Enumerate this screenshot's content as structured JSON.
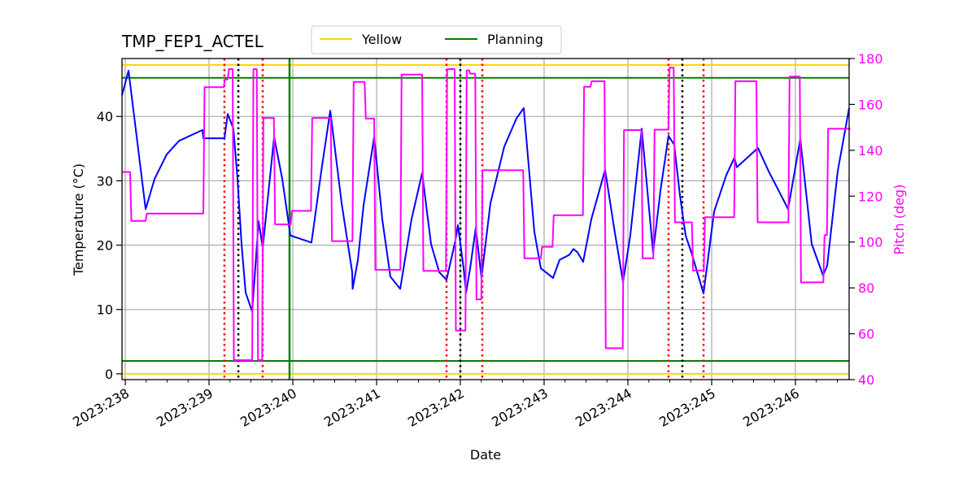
{
  "chart_data": {
    "type": "line",
    "title": "TMP_FEP1_ACTEL",
    "xlabel": "Date",
    "ylabel": "Temperature (°C)",
    "y2label": "Pitch (deg)",
    "xlim": [
      237.961,
      246.641
    ],
    "ylim": [
      -0.9,
      49.0
    ],
    "y2lim": [
      40,
      180
    ],
    "grid": true,
    "legend_placement": "top-center (above plot)",
    "x_ticks": [
      238,
      239,
      240,
      241,
      242,
      243,
      244,
      245,
      246
    ],
    "x_tick_labels": [
      "2023:238",
      "2023:239",
      "2023:240",
      "2023:241",
      "2023:242",
      "2023:243",
      "2023:244",
      "2023:245",
      "2023:246"
    ],
    "y_ticks": [
      0,
      10,
      20,
      30,
      40
    ],
    "y_tick_labels": [
      "0",
      "10",
      "20",
      "30",
      "40"
    ],
    "y2_ticks": [
      40,
      60,
      80,
      100,
      120,
      140,
      160,
      180
    ],
    "y2_tick_labels": [
      "40",
      "60",
      "80",
      "100",
      "120",
      "140",
      "160",
      "180"
    ],
    "colors": {
      "temperature": "#0000ff",
      "pitch": "#ff00ff",
      "yellow": "#ffd700",
      "planning": "#008000",
      "red_marks": "#ff0000",
      "black_marks": "#000000",
      "grid": "#b0b0b0"
    },
    "legend": [
      {
        "label": "Yellow",
        "color": "#ffd700"
      },
      {
        "label": "Planning",
        "color": "#008000"
      }
    ],
    "limit_lines": [
      {
        "kind": "yellow",
        "value": 48
      },
      {
        "kind": "yellow",
        "value": 0
      },
      {
        "kind": "planning",
        "value": 46
      },
      {
        "kind": "planning",
        "value": 2
      }
    ],
    "vertical_lines": [
      {
        "x": 239.184,
        "color": "#ff0000",
        "style": "dotted"
      },
      {
        "x": 239.641,
        "color": "#ff0000",
        "style": "dotted"
      },
      {
        "x": 241.835,
        "color": "#ff0000",
        "style": "dotted"
      },
      {
        "x": 242.262,
        "color": "#ff0000",
        "style": "dotted"
      },
      {
        "x": 244.485,
        "color": "#ff0000",
        "style": "dotted"
      },
      {
        "x": 244.903,
        "color": "#ff0000",
        "style": "dotted"
      },
      {
        "x": 239.35,
        "color": "#000000",
        "style": "dotted"
      },
      {
        "x": 242.0,
        "color": "#000000",
        "style": "dotted"
      },
      {
        "x": 244.65,
        "color": "#000000",
        "style": "dotted"
      },
      {
        "x": 239.961,
        "color": "#008000",
        "style": "solid"
      }
    ],
    "series": [
      {
        "axis": "left",
        "color": "#0000ff",
        "points": [
          [
            237.961,
            43.3
          ],
          [
            238.039,
            47.1
          ],
          [
            238.243,
            25.6
          ],
          [
            238.35,
            30.3
          ],
          [
            238.495,
            34.1
          ],
          [
            238.641,
            36.2
          ],
          [
            238.922,
            37.9
          ],
          [
            238.932,
            36.6
          ],
          [
            239.184,
            36.6
          ],
          [
            239.223,
            40.4
          ],
          [
            239.291,
            38.1
          ],
          [
            239.34,
            30.3
          ],
          [
            239.388,
            20.2
          ],
          [
            239.437,
            12.6
          ],
          [
            239.515,
            9.7
          ],
          [
            239.592,
            23.7
          ],
          [
            239.641,
            19.6
          ],
          [
            239.777,
            36.8
          ],
          [
            239.874,
            30.3
          ],
          [
            239.971,
            21.5
          ],
          [
            240.223,
            20.4
          ],
          [
            240.34,
            31.5
          ],
          [
            240.447,
            40.9
          ],
          [
            240.583,
            26.5
          ],
          [
            240.709,
            15.8
          ],
          [
            240.714,
            13.2
          ],
          [
            240.777,
            17.7
          ],
          [
            240.845,
            26.2
          ],
          [
            240.971,
            36.8
          ],
          [
            241.068,
            24.0
          ],
          [
            241.165,
            15.1
          ],
          [
            241.282,
            13.2
          ],
          [
            241.417,
            24.0
          ],
          [
            241.544,
            31.2
          ],
          [
            241.65,
            20.2
          ],
          [
            241.748,
            15.8
          ],
          [
            241.835,
            14.6
          ],
          [
            241.942,
            20.8
          ],
          [
            241.971,
            23.1
          ],
          [
            242.039,
            16.4
          ],
          [
            242.068,
            12.6
          ],
          [
            242.117,
            16.4
          ],
          [
            242.184,
            22.7
          ],
          [
            242.252,
            14.9
          ],
          [
            242.359,
            26.5
          ],
          [
            242.524,
            35.3
          ],
          [
            242.67,
            39.7
          ],
          [
            242.757,
            41.3
          ],
          [
            242.883,
            22.1
          ],
          [
            242.961,
            16.4
          ],
          [
            243.107,
            14.9
          ],
          [
            243.184,
            17.7
          ],
          [
            243.301,
            18.5
          ],
          [
            243.35,
            19.4
          ],
          [
            243.398,
            18.9
          ],
          [
            243.466,
            17.4
          ],
          [
            243.563,
            24.0
          ],
          [
            243.728,
            31.7
          ],
          [
            243.835,
            22.7
          ],
          [
            243.942,
            14.3
          ],
          [
            244.029,
            21.5
          ],
          [
            244.165,
            38.1
          ],
          [
            244.301,
            18.8
          ],
          [
            244.388,
            28.4
          ],
          [
            244.485,
            37.0
          ],
          [
            244.553,
            35.6
          ],
          [
            244.621,
            27.8
          ],
          [
            244.689,
            21.5
          ],
          [
            244.757,
            18.9
          ],
          [
            244.903,
            12.5
          ],
          [
            245.029,
            25.2
          ],
          [
            245.175,
            30.9
          ],
          [
            245.272,
            33.6
          ],
          [
            245.301,
            32.1
          ],
          [
            245.553,
            35.1
          ],
          [
            245.68,
            31.5
          ],
          [
            245.913,
            25.6
          ],
          [
            246.058,
            36.5
          ],
          [
            246.194,
            20.2
          ],
          [
            246.33,
            15.3
          ],
          [
            246.379,
            16.8
          ],
          [
            246.505,
            31.5
          ],
          [
            246.641,
            41.3
          ]
        ]
      },
      {
        "axis": "right",
        "color": "#ff00ff",
        "step": "post",
        "points": [
          [
            237.961,
            130.5
          ],
          [
            238.058,
            109.2
          ],
          [
            238.243,
            112.4
          ],
          [
            238.932,
            167.5
          ],
          [
            239.175,
            170.9
          ],
          [
            239.223,
            175.4
          ],
          [
            239.282,
            48.5
          ],
          [
            239.515,
            175.4
          ],
          [
            239.57,
            48.5
          ],
          [
            239.634,
            154.1
          ],
          [
            239.774,
            107.7
          ],
          [
            239.974,
            113.6
          ],
          [
            240.217,
            154.1
          ],
          [
            240.453,
            100.4
          ],
          [
            240.712,
            169.8
          ],
          [
            240.857,
            153.8
          ],
          [
            240.971,
            87.9
          ],
          [
            241.284,
            173.0
          ],
          [
            241.544,
            87.4
          ],
          [
            241.828,
            175.4
          ],
          [
            241.932,
            61.4
          ],
          [
            242.061,
            174.8
          ],
          [
            242.104,
            173.4
          ],
          [
            242.178,
            75.0
          ],
          [
            242.25,
            131.3
          ],
          [
            242.75,
            92.9
          ],
          [
            242.961,
            97.9
          ],
          [
            243.1,
            111.7
          ],
          [
            243.463,
            167.7
          ],
          [
            243.553,
            170.1
          ],
          [
            243.721,
            53.7
          ],
          [
            243.939,
            148.8
          ],
          [
            244.162,
            92.9
          ],
          [
            244.304,
            149.0
          ],
          [
            244.483,
            176.0
          ],
          [
            244.547,
            108.6
          ],
          [
            244.764,
            87.6
          ],
          [
            244.906,
            110.8
          ],
          [
            245.269,
            170.1
          ],
          [
            245.534,
            108.6
          ],
          [
            245.916,
            172.1
          ],
          [
            246.052,
            82.4
          ],
          [
            246.333,
            103.0
          ],
          [
            246.376,
            149.4
          ],
          [
            246.641,
            149.4
          ]
        ]
      }
    ]
  }
}
